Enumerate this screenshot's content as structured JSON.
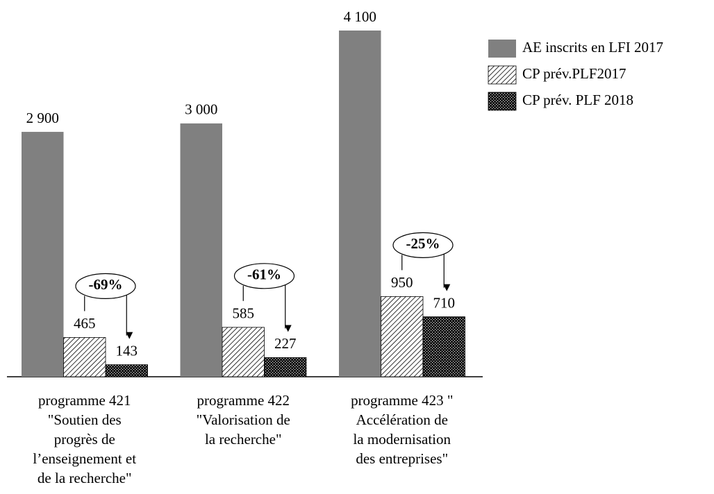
{
  "chart_data": {
    "type": "bar",
    "categories": [
      "programme 421\n\"Soutien des\nprogrès de\nl’enseignement et\nde la recherche\"",
      "programme 422\n\"Valorisation de\nla recherche\"",
      "programme 423 \"\nAccélération de\nla modernisation\ndes entreprises\""
    ],
    "series": [
      {
        "name": "AE inscrits en LFI 2017",
        "color": "#808080",
        "pattern": "solid",
        "values": [
          2900,
          3000,
          4100
        ],
        "value_labels": [
          "2 900",
          "3 000",
          "4 100"
        ]
      },
      {
        "name": "CP prév.PLF2017",
        "color": "#000000",
        "pattern": "diagonal",
        "values": [
          465,
          585,
          950
        ]
      },
      {
        "name": "CP prév. PLF 2018",
        "color": "#000000",
        "pattern": "checker",
        "values": [
          143,
          227,
          710
        ]
      }
    ],
    "annotations": [
      "-69%",
      "-61%",
      "-25%"
    ],
    "legend": "upper right"
  }
}
